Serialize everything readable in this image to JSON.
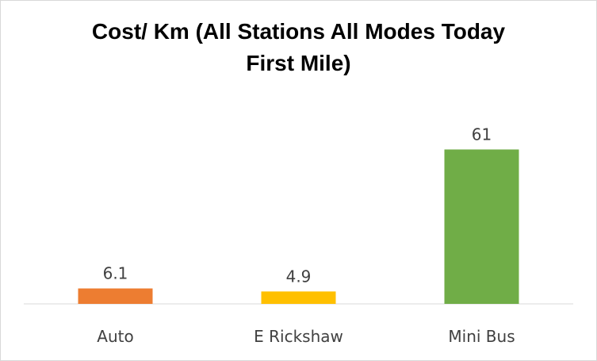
{
  "chart_data": {
    "type": "bar",
    "title_line1": "Cost/ Km (All Stations All Modes Today",
    "title_line2": "First Mile)",
    "categories": [
      "Auto",
      "E Rickshaw",
      "Mini Bus"
    ],
    "values": [
      6.1,
      4.9,
      61
    ],
    "value_labels": [
      "6.1",
      "4.9",
      "61"
    ],
    "colors": [
      "#ed7d31",
      "#ffc000",
      "#70ad47"
    ],
    "ylim": [
      0,
      70
    ],
    "grid": false,
    "legend": "none"
  }
}
